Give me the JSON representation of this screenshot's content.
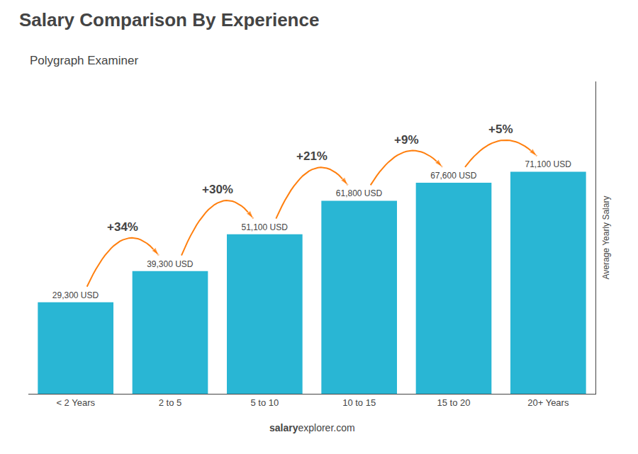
{
  "chart_data": {
    "type": "bar",
    "title": "Salary Comparison By Experience",
    "subtitle": "Polygraph Examiner",
    "ylabel": "Average Yearly Salary",
    "categories": [
      "< 2 Years",
      "2 to 5",
      "5 to 10",
      "10 to 15",
      "15 to 20",
      "20+ Years"
    ],
    "values": [
      29300,
      39300,
      51100,
      61800,
      67600,
      71100
    ],
    "value_labels": [
      "29,300 USD",
      "39,300 USD",
      "51,100 USD",
      "61,800 USD",
      "67,600 USD",
      "71,100 USD"
    ],
    "data_labels": true,
    "color": "#29b6d4",
    "annotations": [
      "+34%",
      "+30%",
      "+21%",
      "+9%",
      "+5%"
    ],
    "footer": [
      "salary",
      "explorer.com"
    ],
    "ylim": [
      0,
      100000
    ],
    "grid": false,
    "tick_labels": "x"
  }
}
